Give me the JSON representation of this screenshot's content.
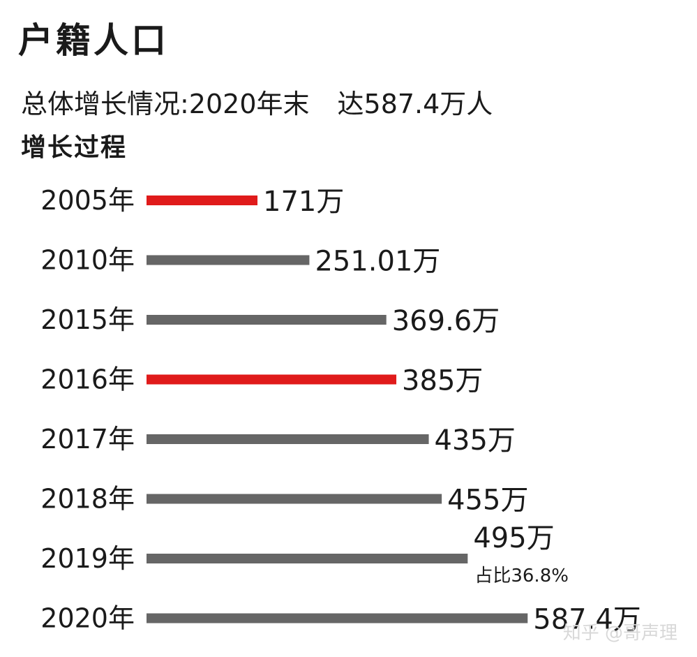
{
  "header": {
    "title": "户籍人口",
    "subtitle_prefix": "总体增长情况:2020年末",
    "subtitle_suffix": "达587.4万人",
    "section": "增长过程"
  },
  "watermark": "知乎 @哥声理",
  "colors": {
    "highlight": "#e01b1b",
    "normal": "#666666",
    "text": "#1a1a1a"
  },
  "chart_data": {
    "type": "bar",
    "orientation": "horizontal",
    "categories": [
      "2005年",
      "2010年",
      "2015年",
      "2016年",
      "2017年",
      "2018年",
      "2019年",
      "2020年"
    ],
    "values": [
      171,
      251.01,
      369.6,
      385,
      435,
      455,
      495,
      587.4
    ],
    "value_labels": [
      "171万",
      "251.01万",
      "369.6万",
      "385万",
      "435万",
      "455万",
      "495万",
      "587.4万"
    ],
    "highlight": [
      true,
      false,
      false,
      true,
      false,
      false,
      false,
      false
    ],
    "annotations": [
      {
        "category": "2019年",
        "text": "占比36.8%"
      }
    ],
    "unit": "万"
  }
}
